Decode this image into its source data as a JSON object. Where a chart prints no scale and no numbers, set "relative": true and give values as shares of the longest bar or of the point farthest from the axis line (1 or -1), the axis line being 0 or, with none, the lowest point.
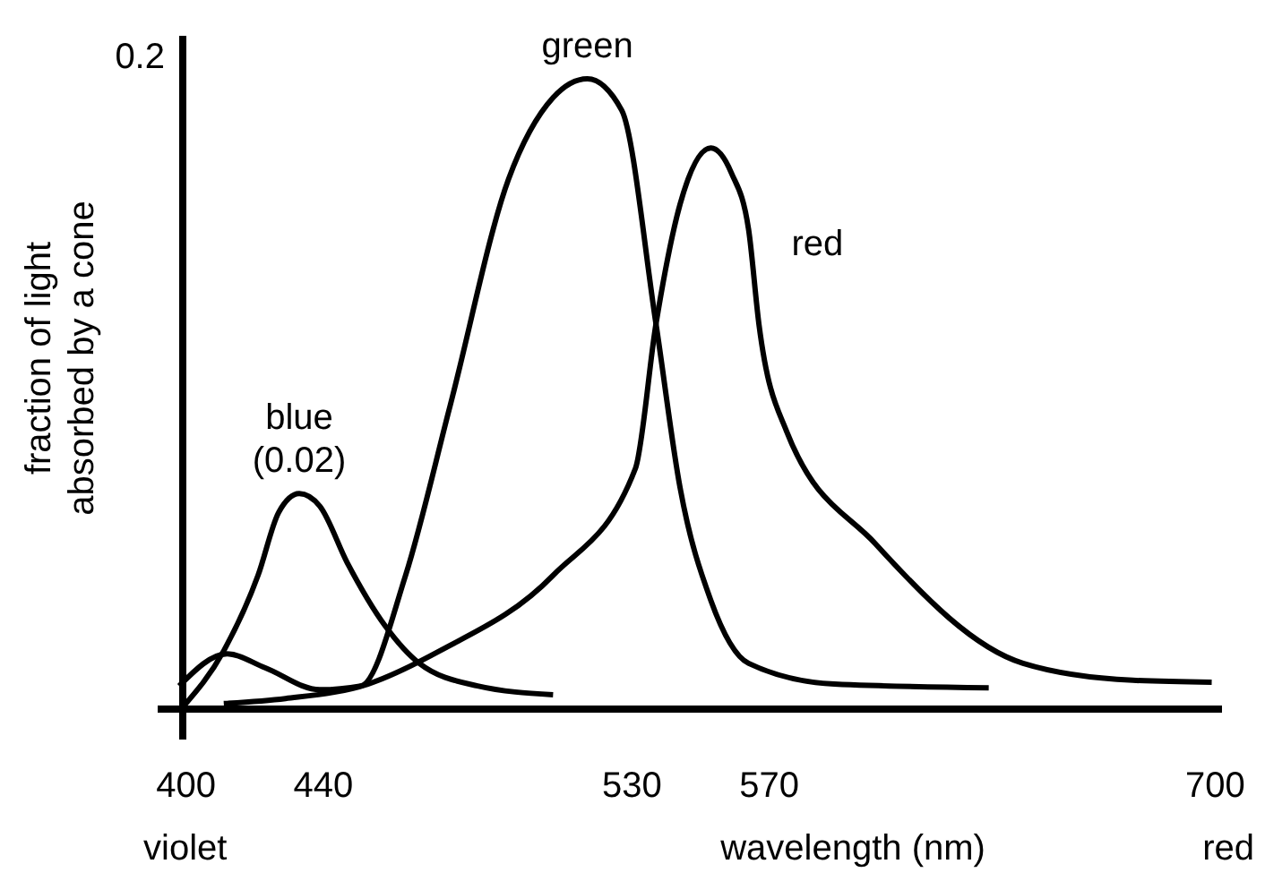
{
  "chart_data": {
    "type": "line",
    "relative": true,
    "xlabel": "wavelength (nm)",
    "ylabel": "fraction of light absorbed by a cone",
    "xlim": [
      398,
      702
    ],
    "xticks": [
      400,
      440,
      530,
      570,
      700
    ],
    "annotations": [
      "0.2",
      "violet",
      "red"
    ],
    "line_style": "solid",
    "series": [
      {
        "name": "blue (0.02)",
        "color": "#000000",
        "x": [
          399,
          411,
          421,
          427,
          433,
          439,
          447,
          458,
          468,
          485,
          507
        ],
        "values": [
          0,
          0.09,
          0.21,
          0.31,
          0.34,
          0.32,
          0.23,
          0.13,
          0.07,
          0.034,
          0.02
        ]
      },
      {
        "name": "green",
        "color": "#000000",
        "x": [
          398,
          412,
          423,
          439,
          451,
          464,
          477,
          494,
          507,
          517,
          527,
          537,
          544,
          553,
          564,
          589,
          634
        ],
        "values": [
          0.034,
          0.085,
          0.063,
          0.028,
          0.034,
          0.21,
          0.48,
          0.84,
          0.97,
          1,
          0.95,
          0.61,
          0.35,
          0.17,
          0.07,
          0.037,
          0.031
        ]
      },
      {
        "name": "red",
        "color": "#000000",
        "x": [
          411,
          429,
          453,
          474,
          507,
          531,
          537,
          544,
          553,
          559,
          564,
          567,
          575,
          601,
          644,
          676,
          699
        ],
        "values": [
          0.006,
          0.014,
          0.037,
          0.09,
          0.21,
          0.38,
          0.61,
          0.8,
          0.89,
          0.85,
          0.76,
          0.61,
          0.44,
          0.26,
          0.07,
          0.043,
          0.04
        ]
      }
    ]
  }
}
